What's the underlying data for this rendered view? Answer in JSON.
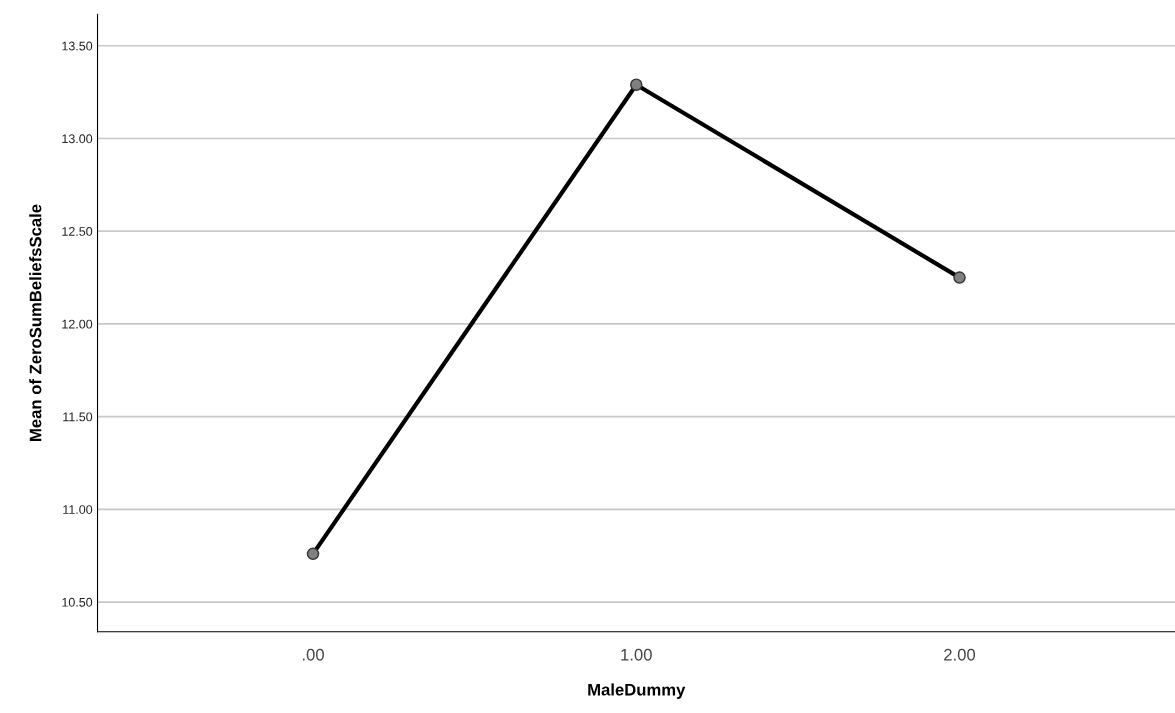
{
  "chart_data": {
    "type": "line",
    "xlabel": "MaleDummy",
    "ylabel": "Mean of ZeroSumBeliefsScale",
    "categories": [
      ".00",
      "1.00",
      "2.00"
    ],
    "series": [
      {
        "color": "#000000",
        "values": [
          10.76,
          13.29,
          12.25
        ]
      }
    ],
    "ylim": [
      10.34,
      13.67
    ],
    "yticks": [
      {
        "value": 10.5,
        "label": "10.50"
      },
      {
        "value": 11.0,
        "label": "11.00"
      },
      {
        "value": 11.5,
        "label": "11.50"
      },
      {
        "value": 12.0,
        "label": "12.00"
      },
      {
        "value": 12.5,
        "label": "12.50"
      },
      {
        "value": 13.0,
        "label": "13.00"
      },
      {
        "value": 13.5,
        "label": "13.50"
      }
    ],
    "grid": "y",
    "marker": "circle",
    "line_style": "solid"
  }
}
